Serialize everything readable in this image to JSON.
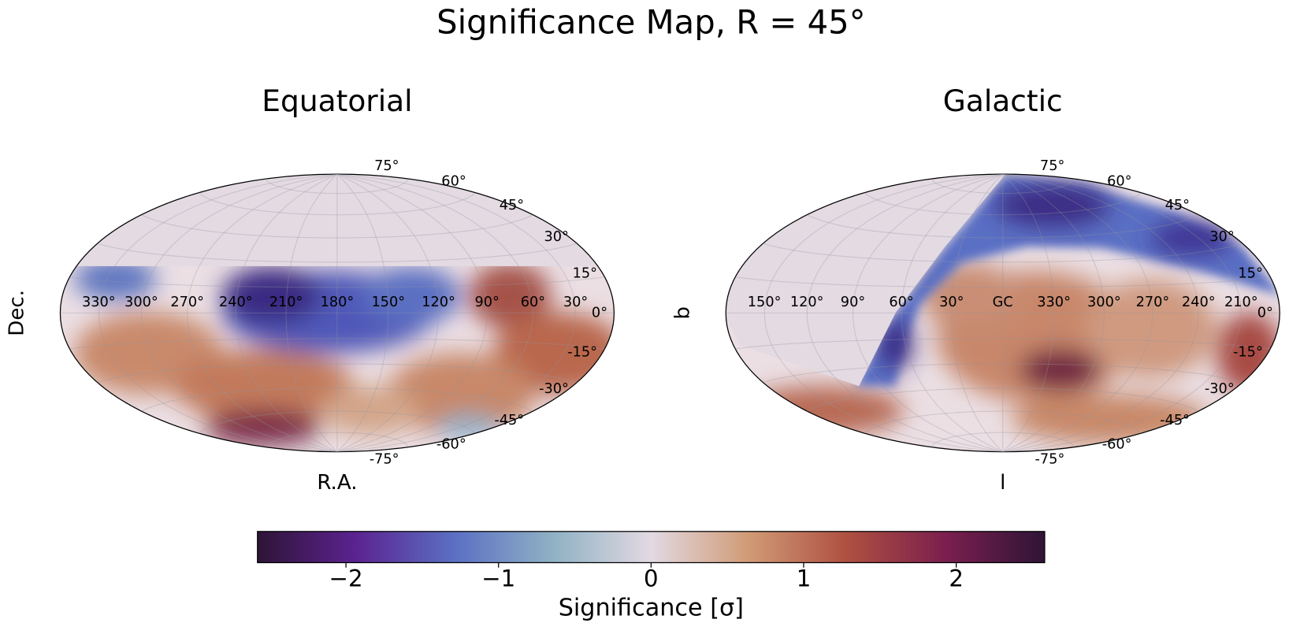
{
  "title": "Significance Map, R = 45°",
  "chart_data": [
    {
      "type": "skymap",
      "title": "Equatorial",
      "xlabel": "R.A.",
      "ylabel": "Dec.",
      "xticks": [
        {
          "value": 330,
          "label": "330°"
        },
        {
          "value": 300,
          "label": "300°"
        },
        {
          "value": 270,
          "label": "270°"
        },
        {
          "value": 240,
          "label": "240°"
        },
        {
          "value": 210,
          "label": "210°"
        },
        {
          "value": 180,
          "label": "180°"
        },
        {
          "value": 150,
          "label": "150°"
        },
        {
          "value": 120,
          "label": "120°"
        },
        {
          "value": 90,
          "label": "90°"
        },
        {
          "value": 60,
          "label": "60°"
        },
        {
          "value": 30,
          "label": "30°"
        }
      ],
      "yticks": [
        {
          "value": 75,
          "label": "75°"
        },
        {
          "value": 60,
          "label": "60°"
        },
        {
          "value": 45,
          "label": "45°"
        },
        {
          "value": 30,
          "label": "30°"
        },
        {
          "value": 15,
          "label": "15°"
        },
        {
          "value": 0,
          "label": "0°"
        },
        {
          "value": -15,
          "label": "-15°"
        },
        {
          "value": -30,
          "label": "-30°"
        },
        {
          "value": -45,
          "label": "-45°"
        },
        {
          "value": -60,
          "label": "-60°"
        },
        {
          "value": -75,
          "label": "-75°"
        }
      ],
      "grid": true
    },
    {
      "type": "skymap",
      "title": "Galactic",
      "xlabel": "l",
      "ylabel": "b",
      "xticks": [
        {
          "value": 150,
          "label": "150°"
        },
        {
          "value": 120,
          "label": "120°"
        },
        {
          "value": 90,
          "label": "90°"
        },
        {
          "value": 60,
          "label": "60°"
        },
        {
          "value": 30,
          "label": "30°"
        },
        {
          "value": 0,
          "label": "GC"
        },
        {
          "value": 330,
          "label": "330°"
        },
        {
          "value": 300,
          "label": "300°"
        },
        {
          "value": 270,
          "label": "270°"
        },
        {
          "value": 240,
          "label": "240°"
        },
        {
          "value": 210,
          "label": "210°"
        }
      ],
      "yticks": [
        {
          "value": 75,
          "label": "75°"
        },
        {
          "value": 60,
          "label": "60°"
        },
        {
          "value": 45,
          "label": "45°"
        },
        {
          "value": 30,
          "label": "30°"
        },
        {
          "value": 15,
          "label": "15°"
        },
        {
          "value": 0,
          "label": "0°"
        },
        {
          "value": -15,
          "label": "-15°"
        },
        {
          "value": -30,
          "label": "-30°"
        },
        {
          "value": -45,
          "label": "-45°"
        },
        {
          "value": -60,
          "label": "-60°"
        },
        {
          "value": -75,
          "label": "-75°"
        }
      ],
      "grid": true
    },
    {
      "type": "colorbar",
      "xlabel": "Significance [σ]",
      "xlim": [
        -2.58,
        2.58
      ],
      "xticks": [
        {
          "value": -2,
          "label": "−2"
        },
        {
          "value": -1,
          "label": "−1"
        },
        0,
        1,
        2
      ],
      "colors": [
        "#2f1437",
        "#5b2390",
        "#5b6fc3",
        "#8fb1c4",
        "#e2d9e2",
        "#d09a75",
        "#ae4f41",
        "#7a1f4e",
        "#2f1437"
      ]
    }
  ]
}
